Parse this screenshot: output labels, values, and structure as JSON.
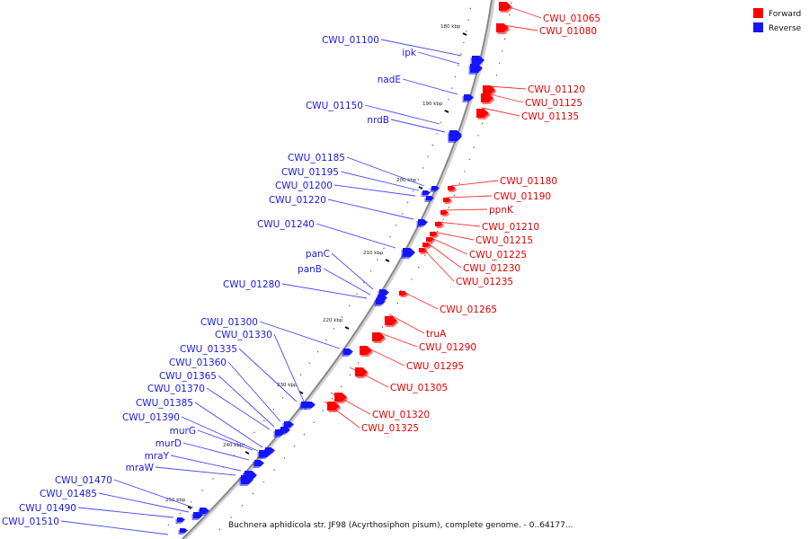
{
  "caption": "Buchnera aphidicola str. JF98 (Acyrthosiphon pisum), complete genome. - 0..64177...",
  "legend": [
    {
      "label": "Forward",
      "color": "#ff0000"
    },
    {
      "label": "Reverse",
      "color": "#1414ff"
    }
  ],
  "colors": {
    "forward": "#ff0000",
    "reverse": "#1414ff",
    "label_forward": "#e00000",
    "label_reverse": "#1a1adc",
    "leader_forward": "#ff3030",
    "leader_reverse": "#4646ff",
    "backbone": "#888888"
  },
  "ticks": [
    "180 kbp",
    "190 kbp",
    "200 kbp",
    "210 kbp",
    "220 kbp",
    "230 kbp",
    "240 kbp",
    "250 kbp"
  ],
  "forward_genes": [
    "CWU_01065",
    "CWU_01080",
    "CWU_01120",
    "CWU_01125",
    "CWU_01135",
    "CWU_01180",
    "CWU_01190",
    "ppnK",
    "CWU_01210",
    "CWU_01215",
    "CWU_01225",
    "CWU_01230",
    "CWU_01235",
    "CWU_01265",
    "truA",
    "CWU_01290",
    "CWU_01295",
    "CWU_01305",
    "CWU_01320",
    "CWU_01325"
  ],
  "reverse_genes": [
    "CWU_01100",
    "ipk",
    "nadE",
    "CWU_01150",
    "nrdB",
    "CWU_01185",
    "CWU_01195",
    "CWU_01200",
    "CWU_01220",
    "CWU_01240",
    "panC",
    "panB",
    "CWU_01280",
    "CWU_01300",
    "CWU_01330",
    "CWU_01335",
    "CWU_01360",
    "CWU_01365",
    "CWU_01370",
    "CWU_01385",
    "CWU_01390",
    "murG",
    "murD",
    "mraY",
    "mraW",
    "CWU_01470",
    "CWU_01485",
    "CWU_01490",
    "CWU_01510"
  ]
}
